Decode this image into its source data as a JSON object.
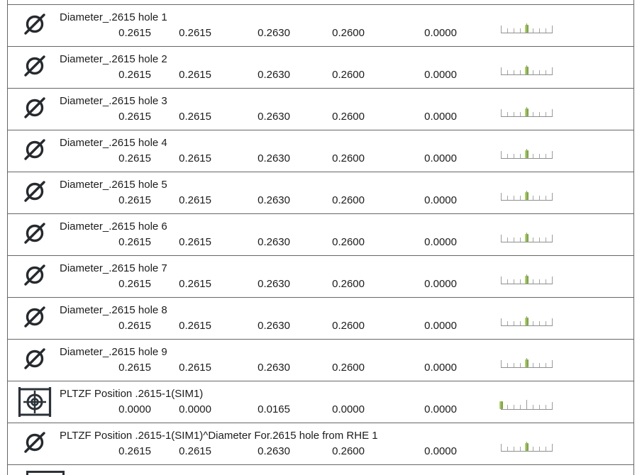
{
  "report": {
    "rows": [
      {
        "icon": "diameter",
        "title": "Diameter_.2615 hole 1",
        "values": [
          "0.2615",
          "0.2615",
          "0.2630",
          "0.2600",
          "0.0000"
        ],
        "gauge_marker": "center"
      },
      {
        "icon": "diameter",
        "title": "Diameter_.2615 hole 2",
        "values": [
          "0.2615",
          "0.2615",
          "0.2630",
          "0.2600",
          "0.0000"
        ],
        "gauge_marker": "center"
      },
      {
        "icon": "diameter",
        "title": "Diameter_.2615 hole 3",
        "values": [
          "0.2615",
          "0.2615",
          "0.2630",
          "0.2600",
          "0.0000"
        ],
        "gauge_marker": "center"
      },
      {
        "icon": "diameter",
        "title": "Diameter_.2615 hole 4",
        "values": [
          "0.2615",
          "0.2615",
          "0.2630",
          "0.2600",
          "0.0000"
        ],
        "gauge_marker": "center"
      },
      {
        "icon": "diameter",
        "title": "Diameter_.2615 hole 5",
        "values": [
          "0.2615",
          "0.2615",
          "0.2630",
          "0.2600",
          "0.0000"
        ],
        "gauge_marker": "center"
      },
      {
        "icon": "diameter",
        "title": "Diameter_.2615 hole 6",
        "values": [
          "0.2615",
          "0.2615",
          "0.2630",
          "0.2600",
          "0.0000"
        ],
        "gauge_marker": "center"
      },
      {
        "icon": "diameter",
        "title": "Diameter_.2615 hole 7",
        "values": [
          "0.2615",
          "0.2615",
          "0.2630",
          "0.2600",
          "0.0000"
        ],
        "gauge_marker": "center"
      },
      {
        "icon": "diameter",
        "title": "Diameter_.2615 hole 8",
        "values": [
          "0.2615",
          "0.2615",
          "0.2630",
          "0.2600",
          "0.0000"
        ],
        "gauge_marker": "center"
      },
      {
        "icon": "diameter",
        "title": "Diameter_.2615 hole 9",
        "values": [
          "0.2615",
          "0.2615",
          "0.2630",
          "0.2600",
          "0.0000"
        ],
        "gauge_marker": "center"
      },
      {
        "icon": "position",
        "title": "PLTZF Position .2615-1(SIM1)",
        "values": [
          "0.0000",
          "0.0000",
          "0.0165",
          "0.0000",
          "0.0000"
        ],
        "gauge_marker": "left"
      },
      {
        "icon": "diameter",
        "title": "PLTZF Position .2615-1(SIM1)^Diameter For.2615 hole from RHE 1",
        "values": [
          "0.2615",
          "0.2615",
          "0.2630",
          "0.2600",
          "0.0000"
        ],
        "gauge_marker": "center"
      }
    ],
    "partial_row": {
      "icon": "square-frame"
    },
    "colors": {
      "marker_green": "#8CC03A",
      "row_border": "#666666",
      "tick_gray": "#A5A5A5",
      "icon_dark": "#2B3137",
      "text": "#1C1C1C"
    }
  }
}
